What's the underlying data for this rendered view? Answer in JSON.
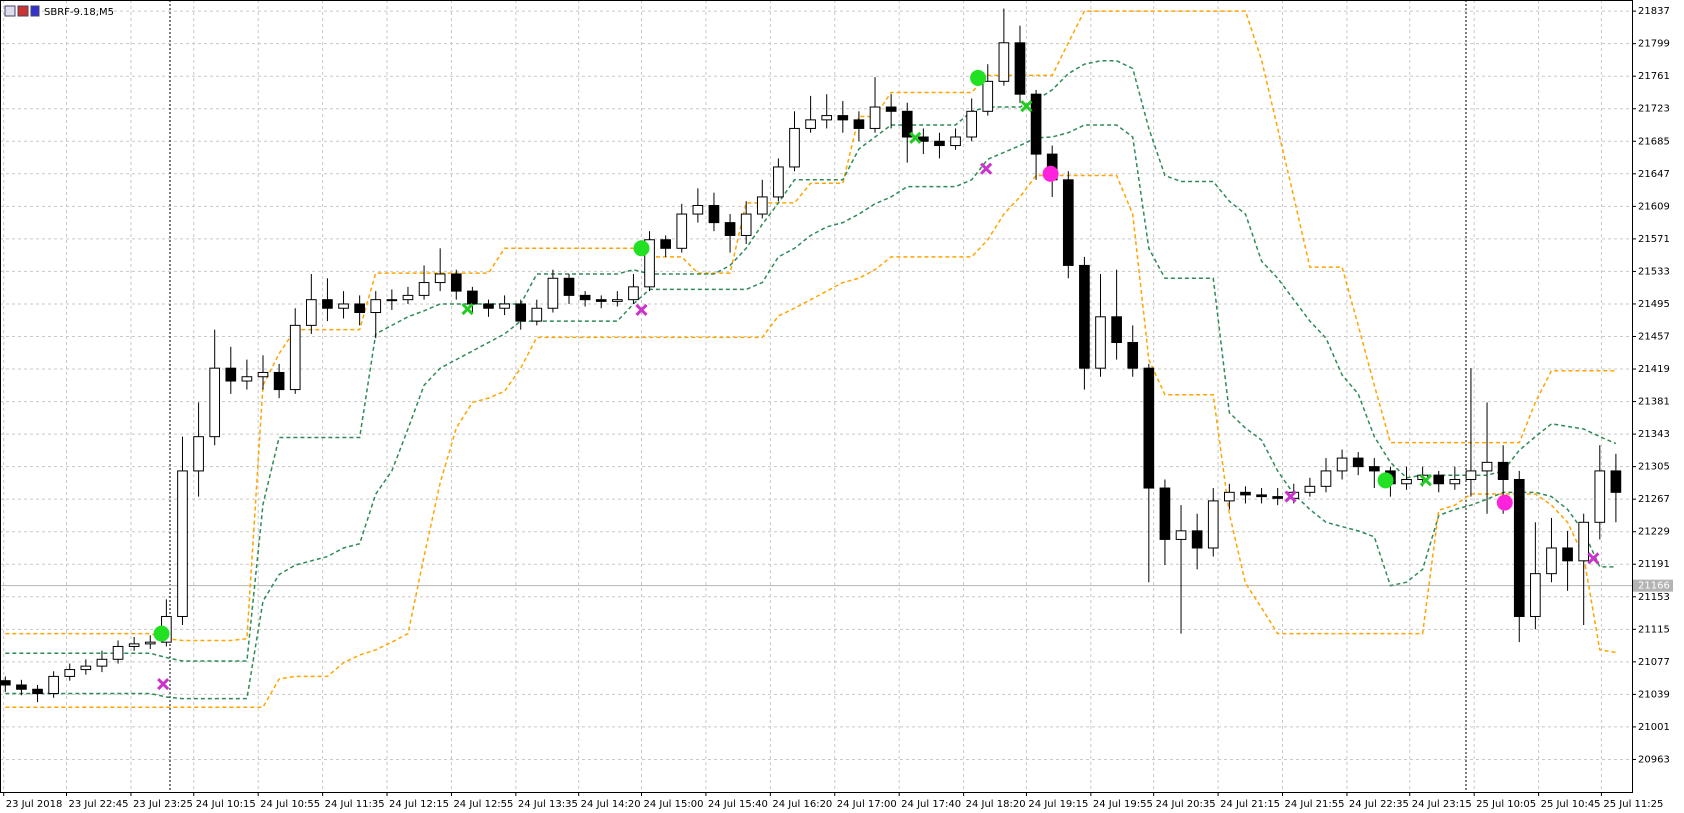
{
  "chart_data": {
    "type": "candlestick",
    "title": "SBRF-9.18,M5",
    "xlim": [
      -0.33,
      101
    ],
    "ylim": [
      20925,
      21850
    ],
    "grid": true,
    "yticks": [
      21837,
      21799,
      21761,
      21723,
      21685,
      21647,
      21609,
      21571,
      21533,
      21495,
      21457,
      21419,
      21381,
      21343,
      21305,
      21267,
      21229,
      21191,
      21153,
      21115,
      21077,
      21039,
      21001,
      20963
    ],
    "xticks": [
      {
        "value": -0.1,
        "label": "23 Jul 2018"
      },
      {
        "value": 3.8,
        "label": "23 Jul 22:45"
      },
      {
        "value": 7.8,
        "label": "23 Jul 23:25"
      },
      {
        "value": 11.7,
        "label": "24 Jul 10:15"
      },
      {
        "value": 15.7,
        "label": "24 Jul 10:55"
      },
      {
        "value": 19.7,
        "label": "24 Jul 11:35"
      },
      {
        "value": 23.7,
        "label": "24 Jul 12:15"
      },
      {
        "value": 27.7,
        "label": "24 Jul 12:55"
      },
      {
        "value": 31.7,
        "label": "24 Jul 13:35"
      },
      {
        "value": 35.6,
        "label": "24 Jul 14:20"
      },
      {
        "value": 39.5,
        "label": "24 Jul 15:00"
      },
      {
        "value": 43.5,
        "label": "24 Jul 15:40"
      },
      {
        "value": 47.5,
        "label": "24 Jul 16:20"
      },
      {
        "value": 51.5,
        "label": "24 Jul 17:00"
      },
      {
        "value": 55.5,
        "label": "24 Jul 17:40"
      },
      {
        "value": 59.5,
        "label": "24 Jul 18:20"
      },
      {
        "value": 63.4,
        "label": "24 Jul 19:15"
      },
      {
        "value": 67.4,
        "label": "24 Jul 19:55"
      },
      {
        "value": 71.3,
        "label": "24 Jul 20:35"
      },
      {
        "value": 75.3,
        "label": "24 Jul 21:15"
      },
      {
        "value": 79.3,
        "label": "24 Jul 21:55"
      },
      {
        "value": 83.3,
        "label": "24 Jul 22:35"
      },
      {
        "value": 87.2,
        "label": "24 Jul 23:15"
      },
      {
        "value": 91.2,
        "label": "25 Jul 10:05"
      },
      {
        "value": 95.2,
        "label": "25 Jul 10:45"
      },
      {
        "value": 99.1,
        "label": "25 Jul 11:25"
      }
    ],
    "current_price": 21166,
    "ohlc": [
      [
        21055,
        21060,
        21042,
        21050
      ],
      [
        21050,
        21056,
        21038,
        21045
      ],
      [
        21045,
        21050,
        21030,
        21040
      ],
      [
        21040,
        21066,
        21035,
        21060
      ],
      [
        21060,
        21075,
        21055,
        21068
      ],
      [
        21068,
        21080,
        21062,
        21072
      ],
      [
        21072,
        21090,
        21065,
        21080
      ],
      [
        21080,
        21102,
        21075,
        21095
      ],
      [
        21095,
        21106,
        21090,
        21098
      ],
      [
        21098,
        21108,
        21092,
        21100
      ],
      [
        21100,
        21150,
        21095,
        21130
      ],
      [
        21130,
        21340,
        21120,
        21300
      ],
      [
        21300,
        21380,
        21270,
        21340
      ],
      [
        21340,
        21465,
        21330,
        21420
      ],
      [
        21420,
        21445,
        21390,
        21405
      ],
      [
        21405,
        21430,
        21395,
        21410
      ],
      [
        21410,
        21435,
        21395,
        21415
      ],
      [
        21415,
        21425,
        21385,
        21395
      ],
      [
        21395,
        21490,
        21390,
        21470
      ],
      [
        21470,
        21530,
        21460,
        21500
      ],
      [
        21500,
        21525,
        21475,
        21490
      ],
      [
        21490,
        21510,
        21478,
        21495
      ],
      [
        21495,
        21505,
        21470,
        21485
      ],
      [
        21485,
        21510,
        21455,
        21500
      ],
      [
        21500,
        21512,
        21488,
        21500
      ],
      [
        21500,
        21515,
        21495,
        21505
      ],
      [
        21505,
        21540,
        21500,
        21520
      ],
      [
        21520,
        21560,
        21510,
        21530
      ],
      [
        21530,
        21535,
        21500,
        21510
      ],
      [
        21510,
        21515,
        21485,
        21495
      ],
      [
        21495,
        21500,
        21480,
        21490
      ],
      [
        21490,
        21505,
        21482,
        21495
      ],
      [
        21495,
        21500,
        21465,
        21475
      ],
      [
        21475,
        21500,
        21470,
        21490
      ],
      [
        21490,
        21535,
        21485,
        21525
      ],
      [
        21525,
        21530,
        21495,
        21505
      ],
      [
        21505,
        21510,
        21492,
        21500
      ],
      [
        21500,
        21505,
        21490,
        21498
      ],
      [
        21498,
        21510,
        21492,
        21500
      ],
      [
        21500,
        21530,
        21495,
        21515
      ],
      [
        21515,
        21580,
        21510,
        21570
      ],
      [
        21570,
        21575,
        21550,
        21560
      ],
      [
        21560,
        21612,
        21555,
        21600
      ],
      [
        21600,
        21630,
        21590,
        21610
      ],
      [
        21610,
        21625,
        21580,
        21590
      ],
      [
        21590,
        21600,
        21555,
        21575
      ],
      [
        21575,
        21615,
        21565,
        21600
      ],
      [
        21600,
        21640,
        21595,
        21620
      ],
      [
        21620,
        21665,
        21615,
        21655
      ],
      [
        21655,
        21720,
        21650,
        21700
      ],
      [
        21700,
        21738,
        21695,
        21710
      ],
      [
        21710,
        21740,
        21700,
        21715
      ],
      [
        21715,
        21732,
        21695,
        21710
      ],
      [
        21710,
        21720,
        21685,
        21700
      ],
      [
        21700,
        21760,
        21695,
        21725
      ],
      [
        21725,
        21740,
        21700,
        21720
      ],
      [
        21720,
        21730,
        21660,
        21690
      ],
      [
        21690,
        21700,
        21670,
        21685
      ],
      [
        21685,
        21695,
        21665,
        21680
      ],
      [
        21680,
        21700,
        21675,
        21690
      ],
      [
        21690,
        21735,
        21685,
        21720
      ],
      [
        21720,
        21775,
        21715,
        21755
      ],
      [
        21755,
        21840,
        21750,
        21800
      ],
      [
        21800,
        21820,
        21730,
        21740
      ],
      [
        21740,
        21745,
        21640,
        21670
      ],
      [
        21670,
        21680,
        21620,
        21640
      ],
      [
        21640,
        21650,
        21525,
        21540
      ],
      [
        21540,
        21550,
        21395,
        21420
      ],
      [
        21420,
        21530,
        21410,
        21480
      ],
      [
        21480,
        21535,
        21430,
        21450
      ],
      [
        21450,
        21470,
        21410,
        21420
      ],
      [
        21420,
        21425,
        21170,
        21280
      ],
      [
        21280,
        21290,
        21190,
        21220
      ],
      [
        21220,
        21260,
        21110,
        21230
      ],
      [
        21230,
        21250,
        21185,
        21210
      ],
      [
        21210,
        21280,
        21200,
        21265
      ],
      [
        21265,
        21285,
        21255,
        21275
      ],
      [
        21275,
        21282,
        21262,
        21272
      ],
      [
        21272,
        21280,
        21262,
        21270
      ],
      [
        21270,
        21280,
        21260,
        21268
      ],
      [
        21268,
        21285,
        21262,
        21275
      ],
      [
        21275,
        21292,
        21270,
        21282
      ],
      [
        21282,
        21315,
        21275,
        21300
      ],
      [
        21300,
        21325,
        21290,
        21315
      ],
      [
        21315,
        21322,
        21295,
        21305
      ],
      [
        21305,
        21315,
        21280,
        21300
      ],
      [
        21300,
        21305,
        21270,
        21285
      ],
      [
        21285,
        21305,
        21278,
        21290
      ],
      [
        21290,
        21305,
        21282,
        21295
      ],
      [
        21295,
        21300,
        21275,
        21285
      ],
      [
        21285,
        21305,
        21278,
        21290
      ],
      [
        21290,
        21420,
        21270,
        21300
      ],
      [
        21300,
        21380,
        21250,
        21310
      ],
      [
        21310,
        21330,
        21250,
        21290
      ],
      [
        21290,
        21300,
        21100,
        21130
      ],
      [
        21130,
        21240,
        21115,
        21180
      ],
      [
        21180,
        21245,
        21170,
        21210
      ],
      [
        21210,
        21230,
        21160,
        21195
      ],
      [
        21195,
        21250,
        21120,
        21240
      ],
      [
        21240,
        21330,
        21220,
        21300
      ],
      [
        21300,
        21320,
        21240,
        21275
      ]
    ],
    "lines": [
      {
        "color": "#ffa500",
        "values": [
          21110,
          21110,
          21110,
          21110,
          21110,
          21110,
          21110,
          21110,
          21110,
          21110,
          21104,
          21102,
          21102,
          21102,
          21102,
          21104,
          21400,
          21437,
          21465,
          21465,
          21465,
          21465,
          21465,
          21531,
          21531,
          21531,
          21531,
          21531,
          21531,
          21531,
          21531,
          21560,
          21560,
          21560,
          21560,
          21560,
          21560,
          21560,
          21560,
          21560,
          21550,
          21550,
          21550,
          21531,
          21531,
          21531,
          21613,
          21613,
          21613,
          21613,
          21636,
          21636,
          21636,
          21714,
          21714,
          21742,
          21742,
          21742,
          21742,
          21742,
          21742,
          21762,
          21762,
          21762,
          21762,
          21762,
          21800,
          21837,
          21837,
          21837,
          21837,
          21837,
          21837,
          21837,
          21837,
          21837,
          21837,
          21837,
          21780,
          21700,
          21620,
          21538,
          21538,
          21538,
          21470,
          21400,
          21333,
          21333,
          21333,
          21333,
          21333,
          21333,
          21333,
          21333,
          21333,
          21380,
          21417,
          21417,
          21417,
          21417,
          21417
        ]
      },
      {
        "color": "#2e8b57",
        "values": [
          21087,
          21087,
          21087,
          21087,
          21087,
          21087,
          21087,
          21087,
          21087,
          21087,
          21082,
          21078,
          21078,
          21078,
          21078,
          21078,
          21261,
          21339,
          21339,
          21339,
          21339,
          21339,
          21339,
          21460,
          21470,
          21480,
          21487,
          21495,
          21495,
          21495,
          21495,
          21495,
          21495,
          21530,
          21530,
          21530,
          21530,
          21530,
          21530,
          21535,
          21530,
          21530,
          21530,
          21530,
          21530,
          21540,
          21560,
          21588,
          21613,
          21640,
          21640,
          21640,
          21640,
          21676,
          21690,
          21704,
          21704,
          21704,
          21704,
          21704,
          21720,
          21725,
          21725,
          21725,
          21733,
          21745,
          21764,
          21775,
          21779,
          21779,
          21770,
          21700,
          21645,
          21638,
          21638,
          21638,
          21615,
          21600,
          21545,
          21525,
          21500,
          21475,
          21455,
          21412,
          21390,
          21340,
          21310,
          21292,
          21295,
          21295,
          21295,
          21295,
          21295,
          21300,
          21324,
          21340,
          21355,
          21352,
          21349,
          21340,
          21332
        ]
      },
      {
        "color": "#2e8b57",
        "values": [
          21040,
          21040,
          21040,
          21040,
          21040,
          21040,
          21040,
          21040,
          21040,
          21040,
          21036,
          21034,
          21034,
          21034,
          21034,
          21034,
          21148,
          21179,
          21190,
          21195,
          21200,
          21210,
          21215,
          21273,
          21300,
          21349,
          21400,
          21420,
          21430,
          21440,
          21450,
          21460,
          21475,
          21475,
          21475,
          21475,
          21475,
          21475,
          21475,
          21495,
          21512,
          21512,
          21512,
          21512,
          21512,
          21512,
          21512,
          21520,
          21550,
          21560,
          21575,
          21585,
          21590,
          21600,
          21612,
          21620,
          21632,
          21632,
          21632,
          21632,
          21640,
          21664,
          21672,
          21680,
          21689,
          21690,
          21695,
          21704,
          21704,
          21704,
          21690,
          21560,
          21525,
          21525,
          21525,
          21525,
          21368,
          21350,
          21336,
          21300,
          21273,
          21255,
          21240,
          21235,
          21230,
          21223,
          21166,
          21170,
          21185,
          21248,
          21255,
          21260,
          21267,
          21275,
          21275,
          21275,
          21270,
          21255,
          21229,
          21188,
          21188
        ]
      },
      {
        "color": "#ffa500",
        "values": [
          21024,
          21024,
          21024,
          21024,
          21024,
          21024,
          21024,
          21024,
          21024,
          21024,
          21024,
          21024,
          21024,
          21024,
          21024,
          21024,
          21024,
          21057,
          21060,
          21060,
          21060,
          21076,
          21085,
          21091,
          21100,
          21110,
          21200,
          21286,
          21350,
          21380,
          21385,
          21393,
          21420,
          21456,
          21456,
          21456,
          21456,
          21456,
          21456,
          21456,
          21456,
          21456,
          21456,
          21456,
          21456,
          21456,
          21456,
          21456,
          21481,
          21490,
          21500,
          21510,
          21520,
          21525,
          21535,
          21550,
          21550,
          21550,
          21550,
          21550,
          21550,
          21570,
          21600,
          21620,
          21645,
          21645,
          21645,
          21645,
          21645,
          21645,
          21600,
          21430,
          21389,
          21389,
          21389,
          21389,
          21250,
          21169,
          21140,
          21110,
          21110,
          21110,
          21110,
          21110,
          21110,
          21110,
          21110,
          21110,
          21110,
          21254,
          21260,
          21273,
          21273,
          21273,
          21273,
          21273,
          21260,
          21240,
          21200,
          21091,
          21088
        ]
      }
    ],
    "signals": [
      {
        "shape": "circle",
        "color": "#22e022",
        "x": [
          9.7,
          39.5,
          60.4,
          85.7
        ],
        "y": [
          21110,
          21560,
          21759,
          21289
        ]
      },
      {
        "shape": "circle",
        "color": "#ff22dd",
        "x": [
          64.9,
          93.1
        ],
        "y": [
          21647,
          21263
        ]
      },
      {
        "shape": "cross",
        "color": "#22cc22",
        "x": [
          28.7,
          56.5,
          63.4,
          88.2
        ],
        "y": [
          21489,
          21689,
          21726,
          21289
        ]
      },
      {
        "shape": "cross",
        "color": "#cc33cc",
        "x": [
          9.8,
          39.5,
          60.9,
          79.8,
          98.6
        ],
        "y": [
          21051,
          21488,
          21653,
          21270,
          21198
        ]
      }
    ]
  }
}
